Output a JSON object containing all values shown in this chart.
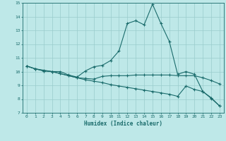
{
  "xlabel": "Humidex (Indice chaleur)",
  "xlim": [
    -0.5,
    23.5
  ],
  "ylim": [
    7,
    15
  ],
  "yticks": [
    7,
    8,
    9,
    10,
    11,
    12,
    13,
    14,
    15
  ],
  "xticks": [
    0,
    1,
    2,
    3,
    4,
    5,
    6,
    7,
    8,
    9,
    10,
    11,
    12,
    13,
    14,
    15,
    16,
    17,
    18,
    19,
    20,
    21,
    22,
    23
  ],
  "bg_color": "#bee8e8",
  "line_color": "#1a6b6b",
  "grid_color": "#99cccc",
  "line1_x": [
    0,
    1,
    2,
    3,
    4,
    5,
    6,
    7,
    8,
    9,
    10,
    11,
    12,
    13,
    14,
    15,
    16,
    17,
    18,
    19,
    20,
    21,
    22,
    23
  ],
  "line1_y": [
    10.4,
    10.2,
    10.1,
    10.0,
    10.0,
    9.75,
    9.6,
    10.05,
    10.35,
    10.45,
    10.8,
    11.5,
    13.5,
    13.7,
    13.4,
    14.9,
    13.5,
    12.2,
    9.8,
    10.0,
    9.8,
    8.55,
    8.1,
    7.5
  ],
  "line2_x": [
    0,
    1,
    2,
    3,
    4,
    5,
    6,
    7,
    8,
    9,
    10,
    11,
    12,
    13,
    14,
    15,
    16,
    17,
    18,
    19,
    20,
    21,
    22,
    23
  ],
  "line2_y": [
    10.4,
    10.2,
    10.05,
    10.0,
    9.85,
    9.7,
    9.55,
    9.5,
    9.45,
    9.65,
    9.7,
    9.7,
    9.7,
    9.75,
    9.75,
    9.75,
    9.75,
    9.75,
    9.7,
    9.7,
    9.7,
    9.55,
    9.35,
    9.1
  ],
  "line3_x": [
    0,
    1,
    2,
    3,
    4,
    5,
    6,
    7,
    8,
    9,
    10,
    11,
    12,
    13,
    14,
    15,
    16,
    17,
    18,
    19,
    20,
    21,
    22,
    23
  ],
  "line3_y": [
    10.4,
    10.2,
    10.05,
    10.0,
    9.85,
    9.7,
    9.55,
    9.4,
    9.3,
    9.2,
    9.05,
    8.95,
    8.85,
    8.75,
    8.65,
    8.55,
    8.45,
    8.35,
    8.2,
    8.95,
    8.7,
    8.55,
    8.05,
    7.5
  ]
}
